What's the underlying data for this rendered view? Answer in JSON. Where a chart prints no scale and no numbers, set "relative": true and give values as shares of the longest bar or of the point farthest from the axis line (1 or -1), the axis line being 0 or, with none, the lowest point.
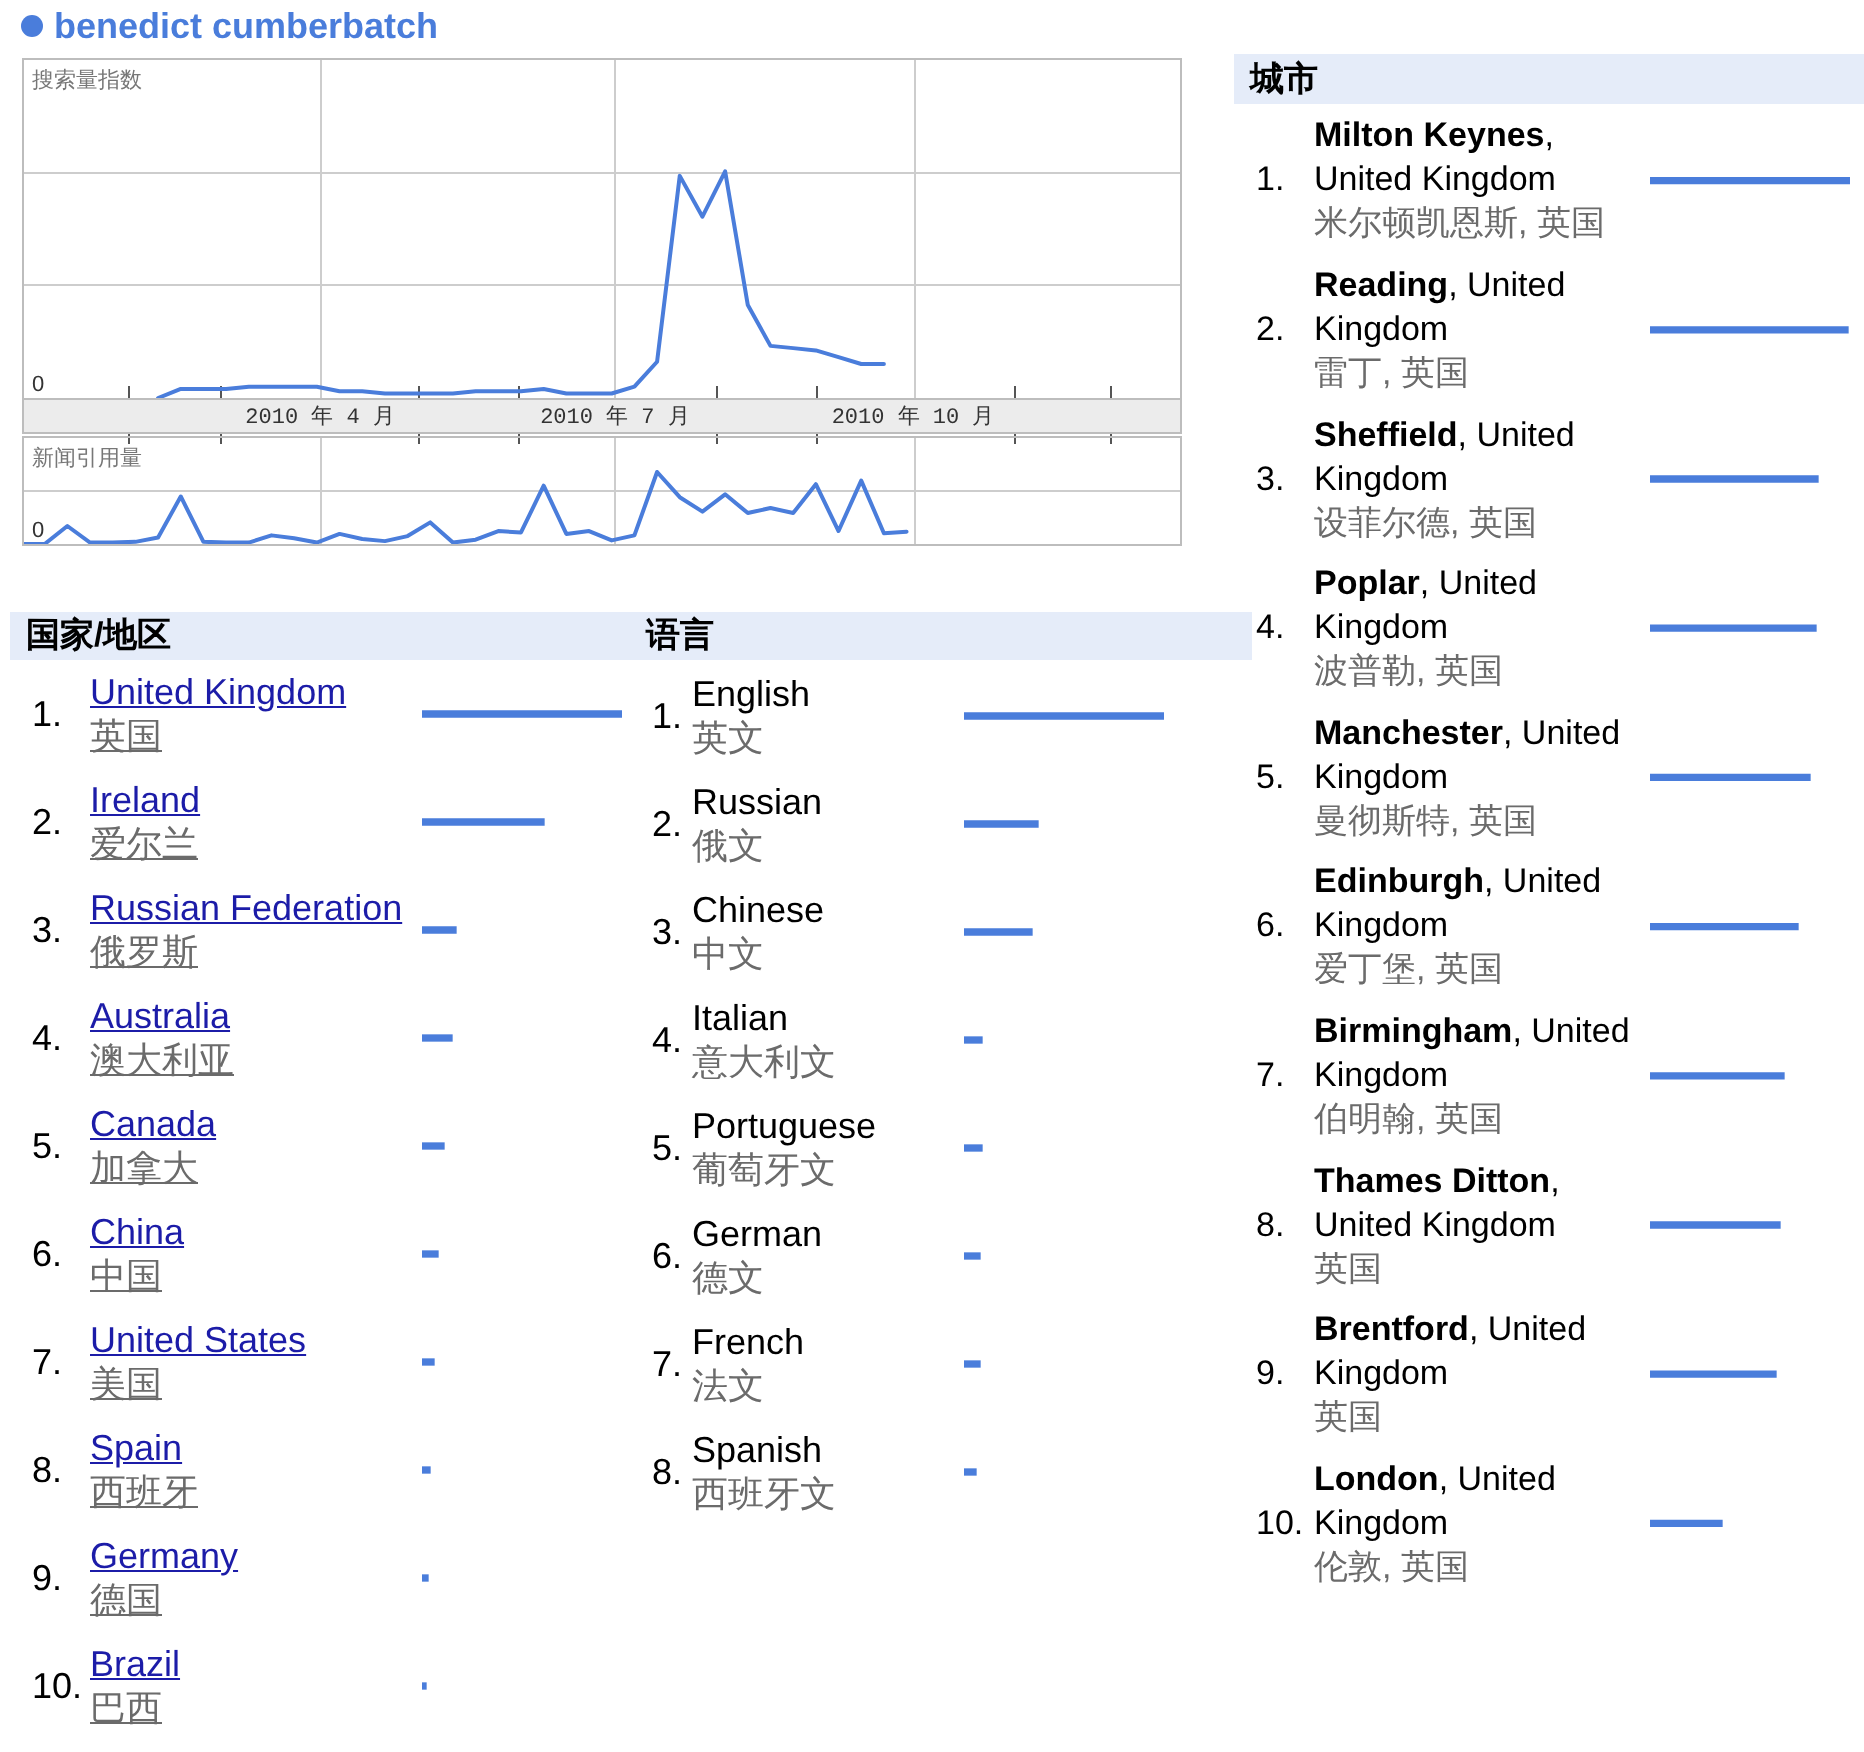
{
  "chart_data": [
    {
      "type": "line",
      "ylabel": "搜索量指数",
      "relative": true,
      "x": [
        "2010-02-10",
        "2010-02-17",
        "2010-02-24",
        "2010-03-03",
        "2010-03-10",
        "2010-03-17",
        "2010-03-24",
        "2010-03-31",
        "2010-04-07",
        "2010-04-14",
        "2010-04-21",
        "2010-04-28",
        "2010-05-05",
        "2010-05-12",
        "2010-05-19",
        "2010-05-26",
        "2010-06-02",
        "2010-06-09",
        "2010-06-16",
        "2010-06-23",
        "2010-06-30",
        "2010-07-07",
        "2010-07-14",
        "2010-07-21",
        "2010-07-28",
        "2010-08-04",
        "2010-08-11",
        "2010-08-18",
        "2010-08-25",
        "2010-09-01",
        "2010-09-08",
        "2010-09-15",
        "2010-09-22"
      ],
      "series": [
        {
          "name": "benedict cumberbatch",
          "color": "#4a7ddb",
          "values": [
            0,
            0.04,
            0.04,
            0.04,
            0.05,
            0.05,
            0.05,
            0.05,
            0.03,
            0.03,
            0.02,
            0.02,
            0.02,
            0.02,
            0.03,
            0.03,
            0.03,
            0.04,
            0.02,
            0.02,
            0.02,
            0.05,
            0.16,
            0.98,
            0.8,
            1,
            0.41,
            0.23,
            0.22,
            0.21,
            0.18,
            0.15,
            0.15
          ]
        }
      ],
      "xlim": [
        "2009-12-30",
        "2010-12-23"
      ],
      "xticks": [
        {
          "value": "2010-02-01",
          "label": null
        },
        {
          "value": "2010-03-01",
          "label": null
        },
        {
          "value": "2010-04-01",
          "label": "2010 年 4 月"
        },
        {
          "value": "2010-05-01",
          "label": null
        },
        {
          "value": "2010-06-01",
          "label": null
        },
        {
          "value": "2010-07-01",
          "label": "2010 年 7 月"
        },
        {
          "value": "2010-08-01",
          "label": null
        },
        {
          "value": "2010-09-01",
          "label": null
        },
        {
          "value": "2010-10-01",
          "label": "2010 年 10 月"
        },
        {
          "value": "2010-11-01",
          "label": null
        },
        {
          "value": "2010-12-01",
          "label": null
        }
      ],
      "grid": true,
      "legend": "top left",
      "annotations": [
        "0"
      ]
    },
    {
      "type": "line",
      "ylabel": "新闻引用量",
      "relative": true,
      "x": [
        "2009-12-30",
        "2010-01-06",
        "2010-01-13",
        "2010-01-20",
        "2010-01-27",
        "2010-02-03",
        "2010-02-10",
        "2010-02-17",
        "2010-02-24",
        "2010-03-03",
        "2010-03-10",
        "2010-03-17",
        "2010-03-24",
        "2010-03-31",
        "2010-04-07",
        "2010-04-14",
        "2010-04-21",
        "2010-04-28",
        "2010-05-05",
        "2010-05-12",
        "2010-05-19",
        "2010-05-26",
        "2010-06-02",
        "2010-06-09",
        "2010-06-16",
        "2010-06-23",
        "2010-06-30",
        "2010-07-07",
        "2010-07-14",
        "2010-07-21",
        "2010-07-28",
        "2010-08-04",
        "2010-08-11",
        "2010-08-18",
        "2010-08-25",
        "2010-09-01",
        "2010-09-08",
        "2010-09-15",
        "2010-09-22",
        "2010-09-29"
      ],
      "series": [
        {
          "color": "#4a7ddb",
          "values": [
            0,
            0,
            0.25,
            0.02,
            0.02,
            0.03,
            0.09,
            0.66,
            0.03,
            0.02,
            0.02,
            0.12,
            0.08,
            0.02,
            0.14,
            0.07,
            0.04,
            0.11,
            0.3,
            0.02,
            0.06,
            0.18,
            0.16,
            0.81,
            0.14,
            0.18,
            0.05,
            0.12,
            1,
            0.65,
            0.45,
            0.69,
            0.43,
            0.5,
            0.43,
            0.83,
            0.18,
            0.88,
            0.15,
            0.17
          ]
        }
      ],
      "xlim": [
        "2009-12-30",
        "2010-12-23"
      ],
      "xticks": [
        "2010-04-01",
        "2010-07-01",
        "2010-10-01"
      ],
      "tick_labels": false,
      "grid": true,
      "annotations": [
        "0"
      ]
    },
    {
      "type": "bar",
      "title": "国家/地区",
      "orientation": "horizontal",
      "relative": true,
      "categories": [
        "1. United Kingdom\n英国",
        "2. Ireland\n爱尔兰",
        "3. Russian Federation\n俄罗斯",
        "4. Australia\n澳大利亚",
        "5. Canada\n加拿大",
        "6. China\n中国",
        "7. United States\n美国",
        "8. Spain\n西班牙",
        "9. Germany\n德国",
        "10. Brazil\n巴西"
      ],
      "values": [
        1,
        0.61,
        0.17,
        0.15,
        0.11,
        0.08,
        0.06,
        0.04,
        0.03,
        0.02
      ],
      "color": "#4a7ddb"
    },
    {
      "type": "bar",
      "title": "语言",
      "orientation": "horizontal",
      "relative": true,
      "categories": [
        "1. English\n英文",
        "2. Russian\n俄文",
        "3. Chinese\n中文",
        "4. Italian\n意大利文",
        "5. Portuguese\n葡萄牙文",
        "6. German\n德文",
        "7. French\n法文",
        "8. Spanish\n西班牙文"
      ],
      "values": [
        1,
        0.37,
        0.34,
        0.09,
        0.09,
        0.08,
        0.08,
        0.06
      ],
      "color": "#4a7ddb"
    },
    {
      "type": "bar",
      "title": "城市",
      "orientation": "horizontal",
      "relative": true,
      "categories": [
        "1. Milton Keynes, United Kingdom\n米尔顿凯恩斯, 英国",
        "2. Reading, United Kingdom\n雷丁, 英国",
        "3. Sheffield, United Kingdom\n设菲尔德, 英国",
        "4. Poplar, United Kingdom\n波普勒, 英国",
        "5. Manchester, United Kingdom\n曼彻斯特, 英国",
        "6. Edinburgh, United Kingdom\n爱丁堡, 英国",
        "7. Birmingham, United Kingdom\n伯明翰, 英国",
        "8. Thames Ditton, United Kingdom\n英国",
        "9. Brentford, United Kingdom\n英国",
        "10. London, United Kingdom\n伦敦, 英国"
      ],
      "values": [
        1,
        0.99,
        0.84,
        0.83,
        0.8,
        0.74,
        0.67,
        0.65,
        0.63,
        0.36
      ],
      "color": "#4a7ddb"
    }
  ]
}
